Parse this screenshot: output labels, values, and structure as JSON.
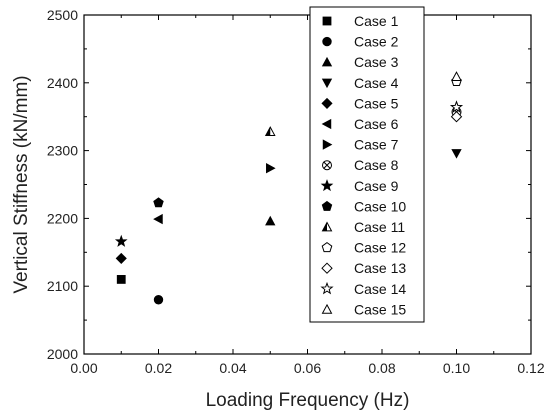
{
  "chart_data": {
    "type": "scatter",
    "xlabel": "Loading Frequency (Hz)",
    "ylabel": "Vertical Stiffness (kN/mm)",
    "xlim": [
      0.0,
      0.12
    ],
    "ylim": [
      2000,
      2500
    ],
    "xticks": [
      0.0,
      0.02,
      0.04,
      0.06,
      0.08,
      0.1,
      0.12
    ],
    "xtick_labels": [
      "0.00",
      "0.02",
      "0.04",
      "0.06",
      "0.08",
      "0.10",
      "0.12"
    ],
    "yticks": [
      2000,
      2100,
      2200,
      2300,
      2400,
      2500
    ],
    "ytick_labels": [
      "2000",
      "2100",
      "2200",
      "2300",
      "2400",
      "2500"
    ],
    "grid": false,
    "legend_position": "top-right",
    "series": [
      {
        "name": "Case 1",
        "marker": "square-filled",
        "points": [
          [
            0.01,
            2110
          ]
        ]
      },
      {
        "name": "Case 2",
        "marker": "circle-filled",
        "points": [
          [
            0.02,
            2080
          ]
        ]
      },
      {
        "name": "Case 3",
        "marker": "triangle-up-filled",
        "points": [
          [
            0.05,
            2196
          ]
        ]
      },
      {
        "name": "Case 4",
        "marker": "triangle-down-filled",
        "points": [
          [
            0.1,
            2296
          ]
        ]
      },
      {
        "name": "Case 5",
        "marker": "diamond-filled",
        "points": [
          [
            0.01,
            2141
          ]
        ]
      },
      {
        "name": "Case 6",
        "marker": "triangle-left-filled",
        "points": [
          [
            0.02,
            2199
          ]
        ]
      },
      {
        "name": "Case 7",
        "marker": "triangle-right-filled",
        "points": [
          [
            0.05,
            2274
          ]
        ]
      },
      {
        "name": "Case 8",
        "marker": "circle-crossed",
        "points": [
          [
            0.1,
            2357
          ]
        ]
      },
      {
        "name": "Case 9",
        "marker": "star-filled",
        "points": [
          [
            0.01,
            2166
          ]
        ]
      },
      {
        "name": "Case 10",
        "marker": "pentagon-filled",
        "points": [
          [
            0.02,
            2223
          ]
        ]
      },
      {
        "name": "Case 11",
        "marker": "triangle-half-filled",
        "points": [
          [
            0.05,
            2328
          ]
        ]
      },
      {
        "name": "Case 12",
        "marker": "pentagon-open",
        "points": [
          [
            0.1,
            2402
          ]
        ]
      },
      {
        "name": "Case 13",
        "marker": "diamond-open",
        "points": [
          [
            0.1,
            2350
          ]
        ]
      },
      {
        "name": "Case 14",
        "marker": "star-open",
        "points": [
          [
            0.1,
            2364
          ]
        ]
      },
      {
        "name": "Case 15",
        "marker": "triangle-up-open",
        "points": [
          [
            0.1,
            2409
          ]
        ]
      }
    ]
  },
  "colors": {
    "marker": "#000000",
    "axis": "#000000",
    "text": "#222222",
    "background": "#ffffff"
  }
}
